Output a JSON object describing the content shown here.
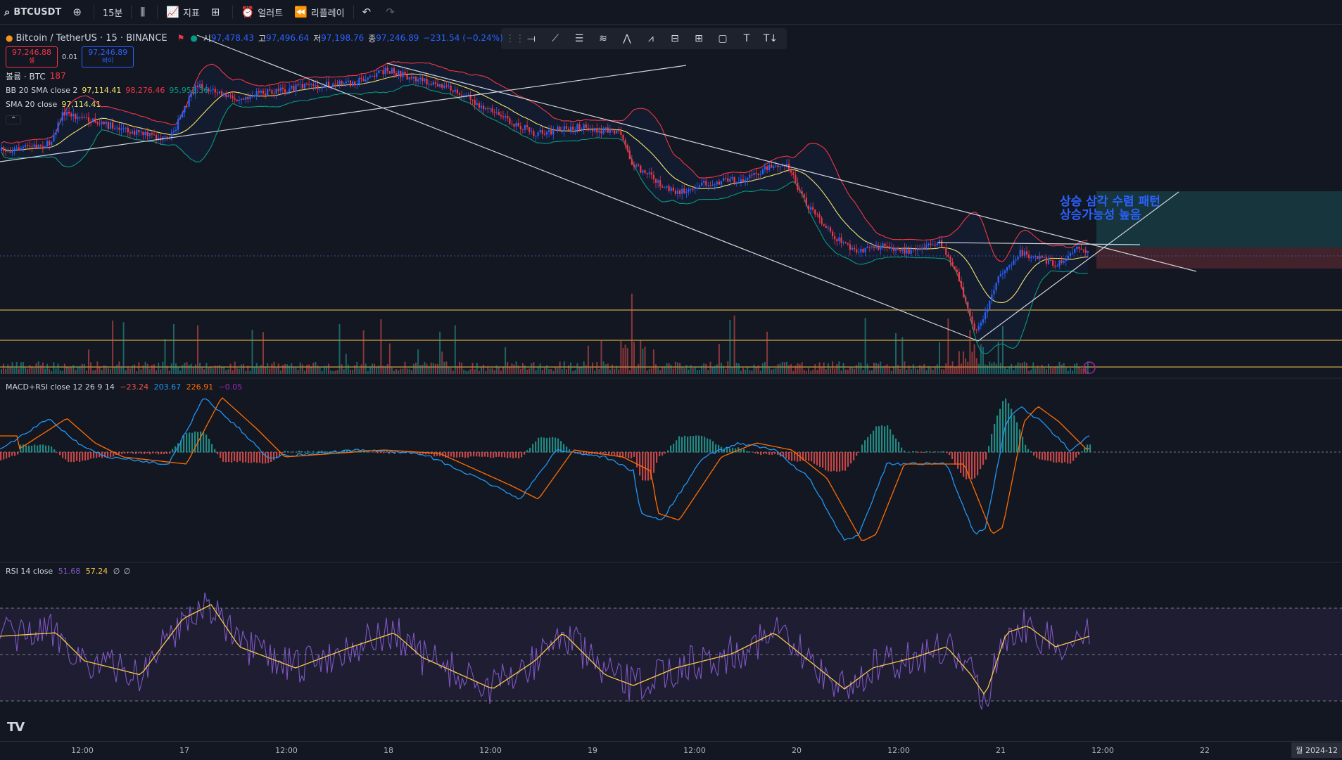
{
  "topbar": {
    "symbol": "BTCUSDT",
    "interval": "15분",
    "indicators": "지표",
    "alert": "얼러트",
    "replay": "리플레이"
  },
  "legend": {
    "title": "Bitcoin / TetherUS · 15 · BINANCE",
    "o_label": "시",
    "o": "97,478.43",
    "h_label": "고",
    "h": "97,496.64",
    "l_label": "저",
    "l": "97,198.76",
    "c_label": "종",
    "c": "97,246.89",
    "change": "−231.54 (−0.24%)",
    "sell_price": "97,246.88",
    "sell_label": "셀",
    "spread": "0.01",
    "buy_price": "97,246.89",
    "buy_label": "바이",
    "volume_label": "볼륨 · BTC",
    "volume_value": "187",
    "bb_label": "BB 20 SMA close 2",
    "bb_basis": "97,114.41",
    "bb_upper": "98,276.46",
    "bb_lower": "95,952.36",
    "sma_label": "SMA 20 close",
    "sma_value": "97,114.41"
  },
  "macd": {
    "label": "MACD+RSI close 12 26 9 14",
    "v1": "−23.24",
    "v2": "203.67",
    "v3": "226.91",
    "v4": "−0.05"
  },
  "rsi": {
    "label": "RSI 14 close",
    "v1": "51.68",
    "v2": "57.24",
    "v3": "∅",
    "v4": "∅"
  },
  "annotation": {
    "line1": "상승 삼각 수렴 패턴",
    "line2": "상승가능성 높음"
  },
  "time_axis": [
    "12:00",
    "17",
    "12:00",
    "18",
    "12:00",
    "19",
    "12:00",
    "20",
    "12:00",
    "21",
    "12:00",
    "22"
  ],
  "date_badge": "월 2024-12",
  "colors": {
    "background": "#131722",
    "up": "#26a69a",
    "down": "#ef5350",
    "candle_up": "#2962ff",
    "candle_down": "#f23645",
    "bb_basis": "#f7e36a",
    "macd_line": "#2196f3",
    "signal_line": "#ff6d00",
    "rsi_line": "#7e57c2",
    "rsi_ma": "#f7c948"
  }
}
